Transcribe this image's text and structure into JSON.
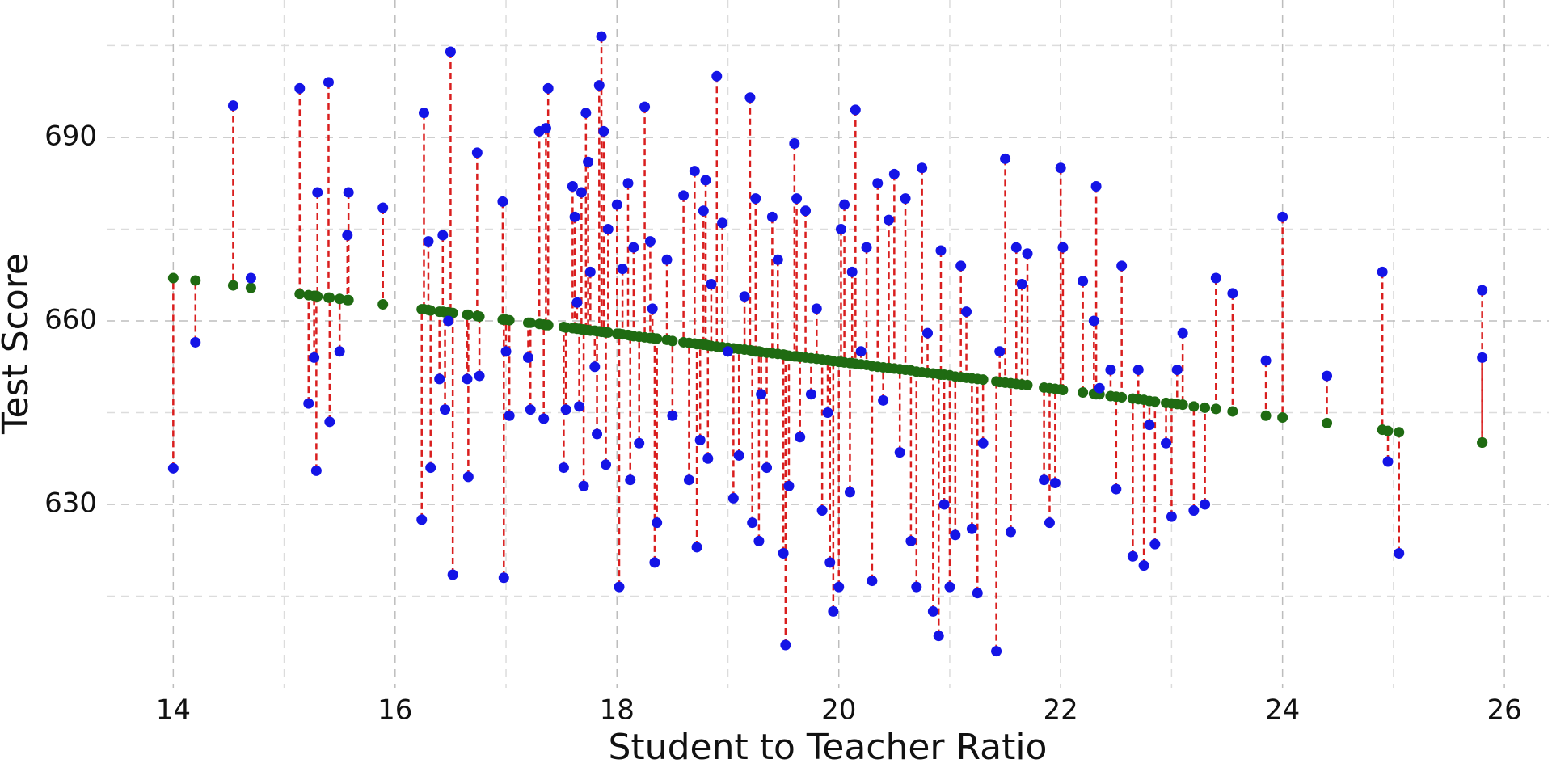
{
  "chart_data": {
    "type": "scatter",
    "x_label": "Student to Teacher Ratio",
    "y_label": "Test Score",
    "x": [
      14.0,
      14.2,
      14.54,
      14.7,
      15.14,
      15.22,
      15.27,
      15.29,
      15.3,
      15.4,
      15.41,
      15.5,
      15.57,
      15.58,
      15.89,
      16.24,
      16.26,
      16.3,
      16.32,
      16.4,
      16.43,
      16.45,
      16.48,
      16.5,
      16.52,
      16.65,
      16.66,
      16.74,
      16.76,
      16.97,
      16.98,
      17.0,
      17.03,
      17.2,
      17.22,
      17.3,
      17.34,
      17.36,
      17.38,
      17.52,
      17.54,
      17.6,
      17.62,
      17.64,
      17.66,
      17.68,
      17.7,
      17.72,
      17.74,
      17.76,
      17.8,
      17.82,
      17.84,
      17.86,
      17.88,
      17.9,
      17.92,
      18.0,
      18.02,
      18.05,
      18.1,
      18.12,
      18.15,
      18.2,
      18.25,
      18.3,
      18.32,
      18.34,
      18.36,
      18.45,
      18.5,
      18.6,
      18.65,
      18.7,
      18.72,
      18.75,
      18.78,
      18.8,
      18.82,
      18.85,
      18.9,
      18.95,
      19.0,
      19.05,
      19.1,
      19.15,
      19.2,
      19.22,
      19.25,
      19.28,
      19.3,
      19.35,
      19.4,
      19.45,
      19.5,
      19.52,
      19.55,
      19.6,
      19.62,
      19.65,
      19.7,
      19.75,
      19.8,
      19.85,
      19.9,
      19.92,
      19.95,
      20.0,
      20.02,
      20.05,
      20.1,
      20.12,
      20.15,
      20.2,
      20.25,
      20.3,
      20.35,
      20.4,
      20.45,
      20.5,
      20.55,
      20.6,
      20.65,
      20.7,
      20.75,
      20.8,
      20.85,
      20.9,
      20.92,
      20.95,
      21.0,
      21.05,
      21.1,
      21.15,
      21.2,
      21.25,
      21.3,
      21.42,
      21.45,
      21.5,
      21.55,
      21.6,
      21.65,
      21.7,
      21.85,
      21.9,
      21.95,
      22.0,
      22.02,
      22.2,
      22.3,
      22.32,
      22.35,
      22.45,
      22.5,
      22.55,
      22.65,
      22.7,
      22.75,
      22.8,
      22.85,
      22.95,
      23.0,
      23.05,
      23.1,
      23.2,
      23.3,
      23.4,
      23.55,
      23.85,
      24.0,
      24.4,
      24.9,
      24.95,
      25.05,
      25.8,
      25.8
    ],
    "series": [
      {
        "color": "#1414e6",
        "values": [
          635.9,
          656.5,
          695.2,
          667.0,
          698.0,
          646.5,
          654.0,
          635.5,
          681.0,
          699.0,
          643.5,
          655.0,
          674.0,
          681.0,
          678.5,
          627.5,
          694.0,
          673.0,
          636.0,
          650.5,
          674.0,
          645.5,
          660.0,
          704.0,
          618.5,
          650.5,
          634.5,
          687.5,
          651.0,
          679.5,
          618.0,
          655.0,
          644.5,
          654.0,
          645.5,
          691.0,
          644.0,
          691.5,
          698.0,
          636.0,
          645.5,
          682.0,
          677.0,
          663.0,
          646.0,
          681.0,
          633.0,
          694.0,
          686.0,
          668.0,
          652.5,
          641.5,
          698.5,
          706.5,
          691.0,
          636.5,
          675.0,
          679.0,
          616.5,
          668.5,
          682.5,
          634.0,
          672.0,
          640.0,
          695.0,
          673.0,
          662.0,
          620.5,
          627.0,
          670.0,
          644.5,
          680.5,
          634.0,
          684.5,
          623.0,
          640.5,
          678.0,
          683.0,
          637.5,
          666.0,
          700.0,
          676.0,
          655.0,
          631.0,
          638.0,
          664.0,
          696.5,
          627.0,
          680.0,
          624.0,
          648.0,
          636.0,
          677.0,
          670.0,
          622.0,
          607.0,
          633.0,
          689.0,
          680.0,
          641.0,
          678.0,
          648.0,
          662.0,
          629.0,
          645.0,
          620.5,
          612.5,
          616.5,
          675.0,
          679.0,
          632.0,
          668.0,
          694.5,
          655.0,
          672.0,
          617.5,
          682.5,
          647.0,
          676.5,
          684.0,
          638.5,
          680.0,
          624.0,
          616.5,
          685.0,
          658.0,
          612.5,
          608.5,
          671.5,
          630.0,
          616.5,
          625.0,
          669.0,
          661.5,
          626.0,
          615.5,
          640.0,
          606.0,
          655.0,
          686.5,
          625.5,
          672.0,
          666.0,
          671.0,
          634.0,
          627.0,
          633.5,
          685.0,
          672.0,
          666.5,
          660.0,
          682.0,
          649.0,
          652.0,
          632.5,
          669.0,
          621.5,
          652.0,
          620.0,
          643.0,
          623.5,
          640.0,
          628.0,
          652.0,
          658.0,
          629.0,
          630.0,
          667.0,
          664.5,
          653.5,
          677.0,
          651.0,
          668.0,
          637.0,
          622.0,
          665.0,
          654.0
        ]
      },
      {
        "color": "#1f6b12",
        "values": [
          667.0,
          666.6,
          665.8,
          665.4,
          664.4,
          664.2,
          664.1,
          664.1,
          664.0,
          663.8,
          663.8,
          663.6,
          663.4,
          663.4,
          662.7,
          661.9,
          661.9,
          661.8,
          661.7,
          661.5,
          661.5,
          661.4,
          661.4,
          661.3,
          661.3,
          661.0,
          661.0,
          660.8,
          660.7,
          660.2,
          660.2,
          660.2,
          660.1,
          659.7,
          659.7,
          659.5,
          659.4,
          659.3,
          659.3,
          659.0,
          658.9,
          658.8,
          658.8,
          658.7,
          658.7,
          658.6,
          658.6,
          658.5,
          658.5,
          658.4,
          658.4,
          658.3,
          658.3,
          658.2,
          658.2,
          658.1,
          658.1,
          657.9,
          657.9,
          657.8,
          657.7,
          657.6,
          657.5,
          657.4,
          657.3,
          657.2,
          657.2,
          657.1,
          657.1,
          656.9,
          656.7,
          656.5,
          656.4,
          656.3,
          656.2,
          656.2,
          656.1,
          656.1,
          656.0,
          655.9,
          655.8,
          655.7,
          655.6,
          655.5,
          655.4,
          655.3,
          655.2,
          655.1,
          655.0,
          655.0,
          654.9,
          654.8,
          654.7,
          654.6,
          654.5,
          654.4,
          654.3,
          654.2,
          654.2,
          654.1,
          654.0,
          653.9,
          653.8,
          653.7,
          653.6,
          653.5,
          653.4,
          653.3,
          653.3,
          653.2,
          653.1,
          653.1,
          653.0,
          652.9,
          652.8,
          652.6,
          652.5,
          652.4,
          652.3,
          652.2,
          652.1,
          652.0,
          651.9,
          651.7,
          651.6,
          651.5,
          651.4,
          651.3,
          651.2,
          651.2,
          651.1,
          650.9,
          650.8,
          650.7,
          650.6,
          650.5,
          650.4,
          650.1,
          650.0,
          649.9,
          649.8,
          649.7,
          649.6,
          649.5,
          649.1,
          649.0,
          648.9,
          648.8,
          648.7,
          648.3,
          648.1,
          648.0,
          648.0,
          647.7,
          647.6,
          647.5,
          647.3,
          647.2,
          647.1,
          646.9,
          646.8,
          646.6,
          646.5,
          646.4,
          646.3,
          646.0,
          645.8,
          645.6,
          645.2,
          644.5,
          644.2,
          643.3,
          642.2,
          642.0,
          641.8,
          640.1,
          640.1
        ]
      }
    ],
    "residual_color": "#d91e1e",
    "xlim": [
      13.4,
      26.4
    ],
    "ylim": [
      600,
      710
    ],
    "xticks": [
      14,
      16,
      18,
      20,
      22,
      24,
      26
    ],
    "yticks": [
      630,
      660,
      690
    ],
    "x_minor_ticks": [
      15,
      17,
      19,
      21,
      23,
      25
    ],
    "y_minor_ticks": [
      615,
      645,
      675,
      705
    ],
    "grid": true
  }
}
